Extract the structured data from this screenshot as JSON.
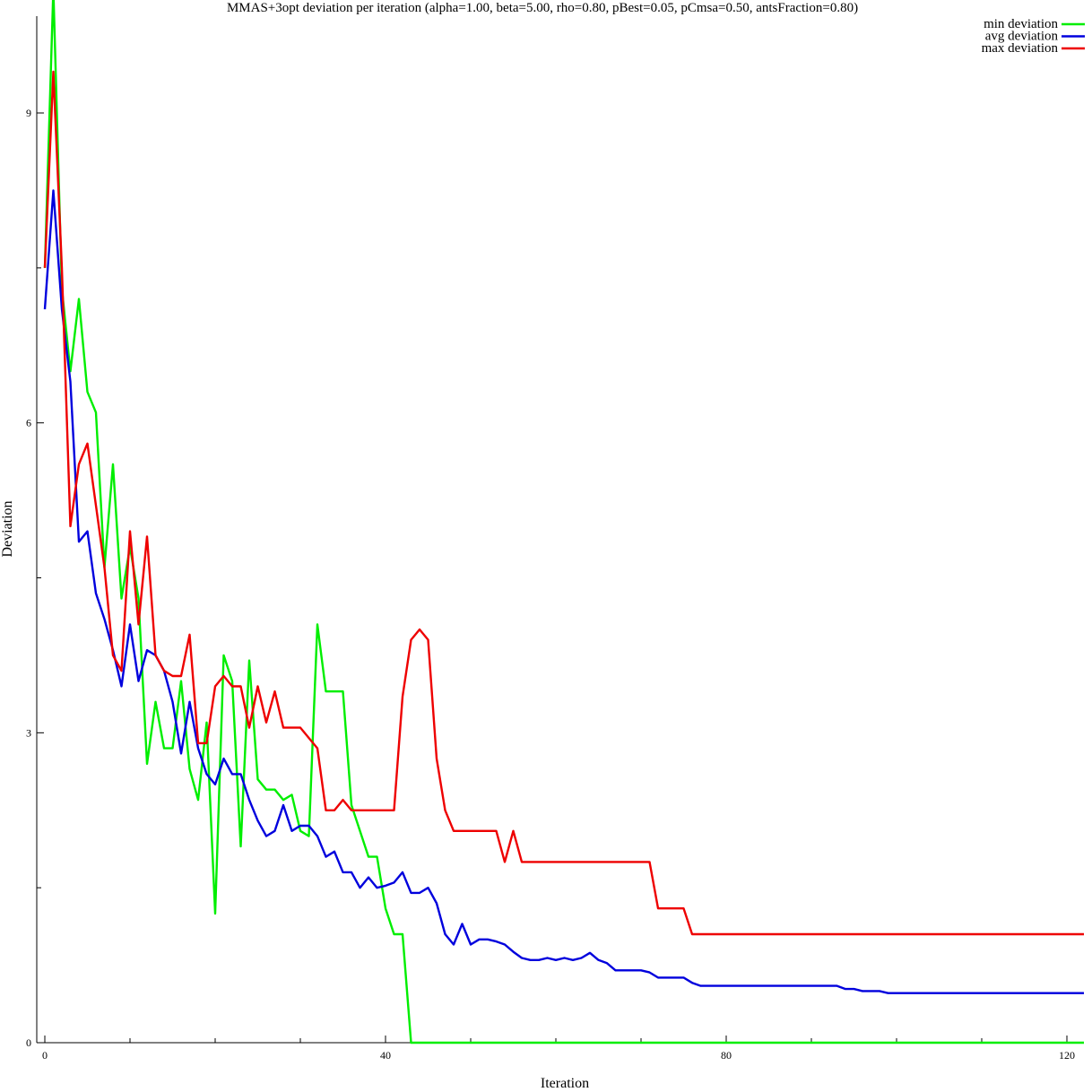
{
  "chart_data": {
    "type": "line",
    "title": "MMAS+3opt deviation per iteration (alpha=1.00, beta=5.00, rho=0.80, pBest=0.05, pCmsa=0.50, antsFraction=0.80)",
    "xlabel": "Iteration",
    "ylabel": "Deviation",
    "xlim": [
      0,
      122
    ],
    "ylim": [
      0,
      10.2
    ],
    "xticks": [
      0,
      40,
      80,
      120
    ],
    "yticks": [
      0,
      3,
      6,
      9
    ],
    "legend_position": "top-right",
    "grid": false,
    "series": [
      {
        "name": "min deviation",
        "color": "#00ee00",
        "points": [
          [
            0,
            7.5
          ],
          [
            1,
            10.2
          ],
          [
            2,
            7.3
          ],
          [
            3,
            6.5
          ],
          [
            4,
            7.2
          ],
          [
            5,
            6.3
          ],
          [
            6,
            6.1
          ],
          [
            7,
            4.6
          ],
          [
            8,
            5.6
          ],
          [
            9,
            4.3
          ],
          [
            10,
            4.8
          ],
          [
            11,
            4.3
          ],
          [
            12,
            2.7
          ],
          [
            13,
            3.3
          ],
          [
            14,
            2.85
          ],
          [
            15,
            2.85
          ],
          [
            16,
            3.5
          ],
          [
            17,
            2.65
          ],
          [
            18,
            2.35
          ],
          [
            19,
            3.1
          ],
          [
            20,
            1.25
          ],
          [
            21,
            3.75
          ],
          [
            22,
            3.5
          ],
          [
            23,
            1.9
          ],
          [
            24,
            3.7
          ],
          [
            25,
            2.55
          ],
          [
            26,
            2.45
          ],
          [
            27,
            2.45
          ],
          [
            28,
            2.35
          ],
          [
            29,
            2.4
          ],
          [
            30,
            2.05
          ],
          [
            31,
            2.0
          ],
          [
            32,
            4.05
          ],
          [
            33,
            3.4
          ],
          [
            34,
            3.4
          ],
          [
            35,
            3.4
          ],
          [
            36,
            2.3
          ],
          [
            37,
            2.05
          ],
          [
            38,
            1.8
          ],
          [
            39,
            1.8
          ],
          [
            40,
            1.3
          ],
          [
            41,
            1.05
          ],
          [
            42,
            1.05
          ],
          [
            43,
            0.0
          ],
          [
            122,
            0.0
          ]
        ]
      },
      {
        "name": "avg deviation",
        "color": "#0000dd",
        "points": [
          [
            0,
            7.1
          ],
          [
            1,
            8.25
          ],
          [
            2,
            7.1
          ],
          [
            3,
            6.4
          ],
          [
            4,
            4.85
          ],
          [
            5,
            4.95
          ],
          [
            6,
            4.35
          ],
          [
            7,
            4.1
          ],
          [
            8,
            3.8
          ],
          [
            9,
            3.45
          ],
          [
            10,
            4.05
          ],
          [
            11,
            3.5
          ],
          [
            12,
            3.8
          ],
          [
            13,
            3.75
          ],
          [
            14,
            3.6
          ],
          [
            15,
            3.3
          ],
          [
            16,
            2.8
          ],
          [
            17,
            3.3
          ],
          [
            18,
            2.85
          ],
          [
            19,
            2.6
          ],
          [
            20,
            2.5
          ],
          [
            21,
            2.75
          ],
          [
            22,
            2.6
          ],
          [
            23,
            2.6
          ],
          [
            24,
            2.35
          ],
          [
            25,
            2.15
          ],
          [
            26,
            2.0
          ],
          [
            27,
            2.05
          ],
          [
            28,
            2.3
          ],
          [
            29,
            2.05
          ],
          [
            30,
            2.1
          ],
          [
            31,
            2.1
          ],
          [
            32,
            2.0
          ],
          [
            33,
            1.8
          ],
          [
            34,
            1.85
          ],
          [
            35,
            1.65
          ],
          [
            36,
            1.65
          ],
          [
            37,
            1.5
          ],
          [
            38,
            1.6
          ],
          [
            39,
            1.5
          ],
          [
            40,
            1.52
          ],
          [
            41,
            1.55
          ],
          [
            42,
            1.65
          ],
          [
            43,
            1.45
          ],
          [
            44,
            1.45
          ],
          [
            45,
            1.5
          ],
          [
            46,
            1.35
          ],
          [
            47,
            1.05
          ],
          [
            48,
            0.95
          ],
          [
            49,
            1.15
          ],
          [
            50,
            0.95
          ],
          [
            51,
            1.0
          ],
          [
            52,
            1.0
          ],
          [
            53,
            0.98
          ],
          [
            54,
            0.95
          ],
          [
            55,
            0.88
          ],
          [
            56,
            0.82
          ],
          [
            57,
            0.8
          ],
          [
            58,
            0.8
          ],
          [
            59,
            0.82
          ],
          [
            60,
            0.8
          ],
          [
            61,
            0.82
          ],
          [
            62,
            0.8
          ],
          [
            63,
            0.82
          ],
          [
            64,
            0.87
          ],
          [
            65,
            0.8
          ],
          [
            66,
            0.77
          ],
          [
            67,
            0.7
          ],
          [
            68,
            0.7
          ],
          [
            69,
            0.7
          ],
          [
            70,
            0.7
          ],
          [
            71,
            0.68
          ],
          [
            72,
            0.63
          ],
          [
            73,
            0.63
          ],
          [
            74,
            0.63
          ],
          [
            75,
            0.63
          ],
          [
            76,
            0.58
          ],
          [
            77,
            0.55
          ],
          [
            93,
            0.55
          ],
          [
            94,
            0.52
          ],
          [
            95,
            0.52
          ],
          [
            96,
            0.5
          ],
          [
            98,
            0.5
          ],
          [
            99,
            0.48
          ],
          [
            122,
            0.48
          ]
        ]
      },
      {
        "name": "max deviation",
        "color": "#ee0000",
        "points": [
          [
            0,
            7.5
          ],
          [
            1,
            9.4
          ],
          [
            2,
            7.5
          ],
          [
            3,
            5.0
          ],
          [
            4,
            5.6
          ],
          [
            5,
            5.8
          ],
          [
            6,
            5.2
          ],
          [
            7,
            4.6
          ],
          [
            8,
            3.75
          ],
          [
            9,
            3.6
          ],
          [
            10,
            4.95
          ],
          [
            11,
            4.05
          ],
          [
            12,
            4.9
          ],
          [
            13,
            3.75
          ],
          [
            14,
            3.6
          ],
          [
            15,
            3.55
          ],
          [
            16,
            3.55
          ],
          [
            17,
            3.95
          ],
          [
            18,
            2.9
          ],
          [
            19,
            2.9
          ],
          [
            20,
            3.45
          ],
          [
            21,
            3.55
          ],
          [
            22,
            3.45
          ],
          [
            23,
            3.45
          ],
          [
            24,
            3.05
          ],
          [
            25,
            3.45
          ],
          [
            26,
            3.1
          ],
          [
            27,
            3.4
          ],
          [
            28,
            3.05
          ],
          [
            29,
            3.05
          ],
          [
            30,
            3.05
          ],
          [
            31,
            2.95
          ],
          [
            32,
            2.85
          ],
          [
            33,
            2.25
          ],
          [
            34,
            2.25
          ],
          [
            35,
            2.35
          ],
          [
            36,
            2.25
          ],
          [
            41,
            2.25
          ],
          [
            42,
            3.35
          ],
          [
            43,
            3.9
          ],
          [
            44,
            4.0
          ],
          [
            45,
            3.9
          ],
          [
            46,
            2.75
          ],
          [
            47,
            2.25
          ],
          [
            48,
            2.05
          ],
          [
            53,
            2.05
          ],
          [
            54,
            1.75
          ],
          [
            55,
            2.05
          ],
          [
            56,
            1.75
          ],
          [
            71,
            1.75
          ],
          [
            72,
            1.3
          ],
          [
            75,
            1.3
          ],
          [
            76,
            1.05
          ],
          [
            122,
            1.05
          ]
        ]
      }
    ]
  }
}
